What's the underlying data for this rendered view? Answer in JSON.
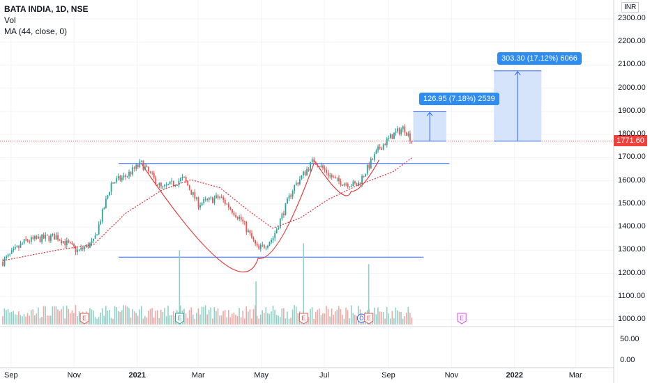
{
  "header": {
    "symbol": "BATA INDIA, 1D, NSE",
    "indicator_vol": "Vol",
    "indicator_ma": "MA (44, close, 0)",
    "currency": "INR",
    "last_price": "1771.60"
  },
  "measures": [
    {
      "label": "126.95 (7.18%) 2539"
    },
    {
      "label": "303.30 (17.12%) 6066"
    }
  ],
  "colors": {
    "up": "#26a69a",
    "down": "#ef5350",
    "ma": "#e23b3b",
    "line": "#2962ff",
    "measure_fill": "#d6e4fb",
    "measure_text_bg": "#2f8cf0",
    "price_tag": "#f0413c"
  },
  "chart_data": {
    "type": "candlestick",
    "title": "BATA INDIA, 1D, NSE",
    "price_axis_labels": [
      "2300.00",
      "2200.00",
      "2100.00",
      "2000.00",
      "1900.00",
      "1800.00",
      "1700.00",
      "1600.00",
      "1500.00",
      "1400.00",
      "1300.00",
      "1200.00",
      "1100.00",
      "1000.00"
    ],
    "volume_axis_labels": [
      "50.00",
      "0.00"
    ],
    "x_tick_labels": [
      "Sep",
      "Nov",
      "2021",
      "Mar",
      "May",
      "Jul",
      "Sep",
      "Nov",
      "2022",
      "Mar"
    ],
    "x_tick_bold": [
      "2021",
      "2022"
    ],
    "price_range": [
      975,
      2335
    ],
    "close_path": [
      {
        "date": "2020-08-24",
        "close": 1250
      },
      {
        "date": "2020-09-15",
        "close": 1340
      },
      {
        "date": "2020-10-15",
        "close": 1360
      },
      {
        "date": "2020-11-05",
        "close": 1295
      },
      {
        "date": "2020-11-20",
        "close": 1335
      },
      {
        "date": "2020-12-07",
        "close": 1590
      },
      {
        "date": "2020-12-21",
        "close": 1620
      },
      {
        "date": "2021-01-05",
        "close": 1675
      },
      {
        "date": "2021-01-25",
        "close": 1565
      },
      {
        "date": "2021-02-15",
        "close": 1610
      },
      {
        "date": "2021-03-01",
        "close": 1500
      },
      {
        "date": "2021-03-22",
        "close": 1530
      },
      {
        "date": "2021-04-12",
        "close": 1430
      },
      {
        "date": "2021-04-28",
        "close": 1300
      },
      {
        "date": "2021-05-12",
        "close": 1350
      },
      {
        "date": "2021-06-01",
        "close": 1570
      },
      {
        "date": "2021-06-21",
        "close": 1690
      },
      {
        "date": "2021-07-12",
        "close": 1600
      },
      {
        "date": "2021-08-02",
        "close": 1580
      },
      {
        "date": "2021-08-23",
        "close": 1740
      },
      {
        "date": "2021-09-06",
        "close": 1800
      },
      {
        "date": "2021-09-16",
        "close": 1830
      },
      {
        "date": "2021-09-24",
        "close": 1771.6
      }
    ],
    "moving_average": {
      "name": "MA (44, close, 0)",
      "points": [
        {
          "date": "2020-08-24",
          "value": 1255
        },
        {
          "date": "2020-10-15",
          "value": 1300
        },
        {
          "date": "2020-11-20",
          "value": 1325
        },
        {
          "date": "2020-12-21",
          "value": 1460
        },
        {
          "date": "2021-01-25",
          "value": 1560
        },
        {
          "date": "2021-02-22",
          "value": 1605
        },
        {
          "date": "2021-03-22",
          "value": 1570
        },
        {
          "date": "2021-04-19",
          "value": 1470
        },
        {
          "date": "2021-05-12",
          "value": 1395
        },
        {
          "date": "2021-06-08",
          "value": 1440
        },
        {
          "date": "2021-07-05",
          "value": 1520
        },
        {
          "date": "2021-08-02",
          "value": 1580
        },
        {
          "date": "2021-09-06",
          "value": 1640
        },
        {
          "date": "2021-09-24",
          "value": 1700
        }
      ]
    },
    "volume_spikes": [
      {
        "date": "2021-02-11",
        "value": 1300
      },
      {
        "date": "2021-04-26",
        "value": 1165
      },
      {
        "date": "2021-06-11",
        "value": 1330
      },
      {
        "date": "2021-08-13",
        "value": 1240
      }
    ],
    "earnings_markers": [
      {
        "date": "2020-11-11",
        "label": "E",
        "color": "#ef5350"
      },
      {
        "date": "2021-02-11",
        "label": "E",
        "color": "#26a69a"
      },
      {
        "date": "2021-06-11",
        "label": "E",
        "color": "#ef5350"
      },
      {
        "date": "2021-08-06",
        "label": "D",
        "color": "#2962ff"
      },
      {
        "date": "2021-08-13",
        "label": "E",
        "color": "#ef5350"
      },
      {
        "date": "2021-11-11",
        "label": "E",
        "color": "#e040fb"
      }
    ],
    "drawings": {
      "resistance": {
        "value": 1675,
        "from": "2020-12-14",
        "to": "2021-10-30"
      },
      "support": {
        "value": 1270,
        "from": "2020-12-14",
        "to": "2021-10-05"
      },
      "cup_curve": {
        "from": "2021-01-05",
        "bottom": "2021-04-28",
        "to": "2021-06-21",
        "rim": 1675,
        "bottom_value": 1265
      },
      "handle_curve": {
        "from": "2021-06-21",
        "bottom": "2021-07-27",
        "to": "2021-08-23",
        "bottom_value": 1555
      }
    },
    "measures": [
      {
        "label": "126.95 (7.18%) 2539",
        "from": 1771.6,
        "to": 1898.55,
        "x_from": "2021-09-25",
        "x_to": "2021-10-27"
      },
      {
        "label": "303.30 (17.12%) 6066",
        "from": 1771.6,
        "to": 2074.9,
        "x_from": "2021-12-12",
        "x_to": "2022-01-27"
      }
    ],
    "last_close": 1771.6
  }
}
